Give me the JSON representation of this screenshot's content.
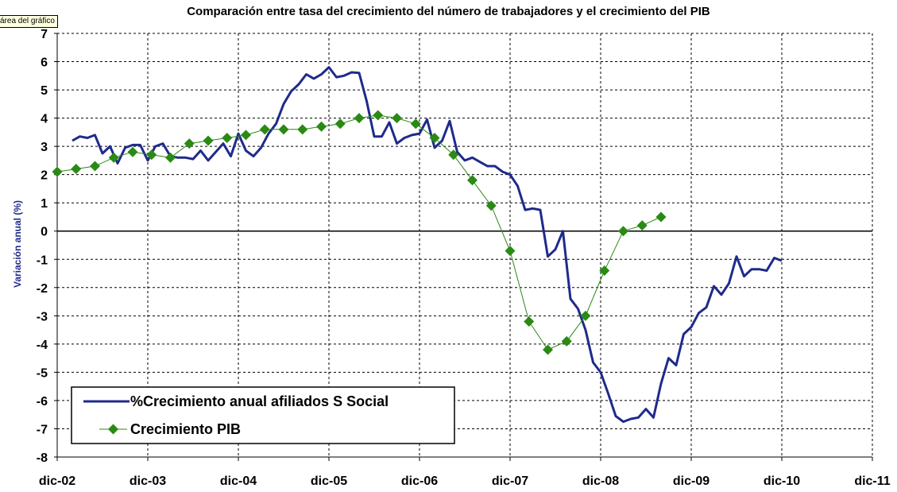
{
  "tooltip": "área del gráfico",
  "chart_data": {
    "type": "line",
    "title": "Comparación entre tasa del crecimiento del número de trabajadores y el crecimiento del PIB",
    "xlabel": "",
    "ylabel": "Variación anual (%)",
    "ylim": [
      -8,
      7
    ],
    "y_ticks": [
      "-8",
      "-7",
      "-6",
      "-5",
      "-4",
      "-3",
      "-2",
      "-1",
      "0",
      "1",
      "2",
      "3",
      "4",
      "5",
      "6",
      "7"
    ],
    "x_ticks": [
      "dic-02",
      "dic-03",
      "dic-04",
      "dic-05",
      "dic-06",
      "dic-07",
      "dic-08",
      "dic-09",
      "dic-10",
      "dic-11"
    ],
    "grid": "horizontal and vertical, dashed",
    "legend_position": "bottom-left",
    "series": [
      {
        "name": "%Crecimiento anual afiliados S Social",
        "color": "#1f2a8c",
        "marker": "none",
        "x_unit": "months since dic-02",
        "points": [
          [
            2,
            3.2
          ],
          [
            3,
            3.35
          ],
          [
            4,
            3.3
          ],
          [
            5,
            3.4
          ],
          [
            6,
            2.75
          ],
          [
            7,
            3.0
          ],
          [
            8,
            2.4
          ],
          [
            9,
            2.95
          ],
          [
            10,
            3.05
          ],
          [
            11,
            3.05
          ],
          [
            12,
            2.5
          ],
          [
            13,
            3.0
          ],
          [
            14,
            3.1
          ],
          [
            15,
            2.65
          ],
          [
            16,
            2.6
          ],
          [
            17,
            2.6
          ],
          [
            18,
            2.55
          ],
          [
            19,
            2.85
          ],
          [
            20,
            2.5
          ],
          [
            21,
            2.8
          ],
          [
            22,
            3.1
          ],
          [
            23,
            2.65
          ],
          [
            24,
            3.45
          ],
          [
            25,
            2.85
          ],
          [
            26,
            2.65
          ],
          [
            27,
            2.95
          ],
          [
            28,
            3.45
          ],
          [
            29,
            3.8
          ],
          [
            30,
            4.5
          ],
          [
            31,
            4.95
          ],
          [
            32,
            5.2
          ],
          [
            33,
            5.55
          ],
          [
            34,
            5.4
          ],
          [
            35,
            5.55
          ],
          [
            36,
            5.8
          ],
          [
            37,
            5.45
          ],
          [
            38,
            5.5
          ],
          [
            39,
            5.62
          ],
          [
            40,
            5.6
          ],
          [
            41,
            4.6
          ],
          [
            42,
            3.35
          ],
          [
            43,
            3.35
          ],
          [
            44,
            3.85
          ],
          [
            45,
            3.1
          ],
          [
            46,
            3.3
          ],
          [
            47,
            3.4
          ],
          [
            48,
            3.45
          ],
          [
            49,
            3.95
          ],
          [
            50,
            2.95
          ],
          [
            51,
            3.2
          ],
          [
            52,
            3.9
          ],
          [
            53,
            2.8
          ],
          [
            54,
            2.5
          ],
          [
            55,
            2.6
          ],
          [
            56,
            2.45
          ],
          [
            57,
            2.3
          ],
          [
            58,
            2.3
          ],
          [
            59,
            2.1
          ],
          [
            60,
            2.0
          ],
          [
            61,
            1.6
          ],
          [
            62,
            0.75
          ],
          [
            63,
            0.8
          ],
          [
            64,
            0.75
          ],
          [
            65,
            -0.9
          ],
          [
            66,
            -0.65
          ],
          [
            67,
            0.0
          ],
          [
            68,
            -2.4
          ],
          [
            69,
            -2.75
          ],
          [
            70,
            -3.5
          ],
          [
            71,
            -4.65
          ],
          [
            72,
            -5.0
          ],
          [
            73,
            -5.75
          ],
          [
            74,
            -6.55
          ],
          [
            75,
            -6.75
          ],
          [
            76,
            -6.65
          ],
          [
            77,
            -6.6
          ],
          [
            78,
            -6.3
          ],
          [
            79,
            -6.6
          ],
          [
            80,
            -5.4
          ],
          [
            81,
            -4.5
          ],
          [
            82,
            -4.75
          ],
          [
            83,
            -3.65
          ],
          [
            84,
            -3.4
          ],
          [
            85,
            -2.9
          ],
          [
            86,
            -2.7
          ],
          [
            87,
            -1.95
          ],
          [
            88,
            -2.25
          ],
          [
            89,
            -1.85
          ],
          [
            90,
            -0.9
          ],
          [
            91,
            -1.6
          ],
          [
            92,
            -1.35
          ],
          [
            93,
            -1.35
          ],
          [
            94,
            -1.4
          ],
          [
            95,
            -0.95
          ],
          [
            96,
            -1.05
          ]
        ]
      },
      {
        "name": "Crecimiento PIB",
        "color": "#2a8a14",
        "marker": "diamond",
        "x_unit": "months since dic-02",
        "points": [
          [
            0,
            2.1
          ],
          [
            2.5,
            2.2
          ],
          [
            5,
            2.3
          ],
          [
            7.5,
            2.6
          ],
          [
            10,
            2.8
          ],
          [
            12.5,
            2.7
          ],
          [
            15,
            2.6
          ],
          [
            17.5,
            3.1
          ],
          [
            20,
            3.2
          ],
          [
            22.5,
            3.3
          ],
          [
            25,
            3.4
          ],
          [
            27.5,
            3.6
          ],
          [
            30,
            3.6
          ],
          [
            32.5,
            3.6
          ],
          [
            35,
            3.7
          ],
          [
            37.5,
            3.8
          ],
          [
            40,
            4.0
          ],
          [
            42.5,
            4.1
          ],
          [
            45,
            4.0
          ],
          [
            47.5,
            3.8
          ],
          [
            50,
            3.3
          ],
          [
            52.5,
            2.7
          ],
          [
            55,
            1.8
          ],
          [
            57.5,
            0.9
          ],
          [
            60,
            -0.7
          ],
          [
            62.5,
            -3.2
          ],
          [
            65,
            -4.2
          ],
          [
            67.5,
            -3.9
          ],
          [
            70,
            -3.0
          ],
          [
            72.5,
            -1.4
          ],
          [
            75,
            0.0
          ],
          [
            77.5,
            0.2
          ],
          [
            80,
            0.5
          ]
        ]
      }
    ]
  }
}
